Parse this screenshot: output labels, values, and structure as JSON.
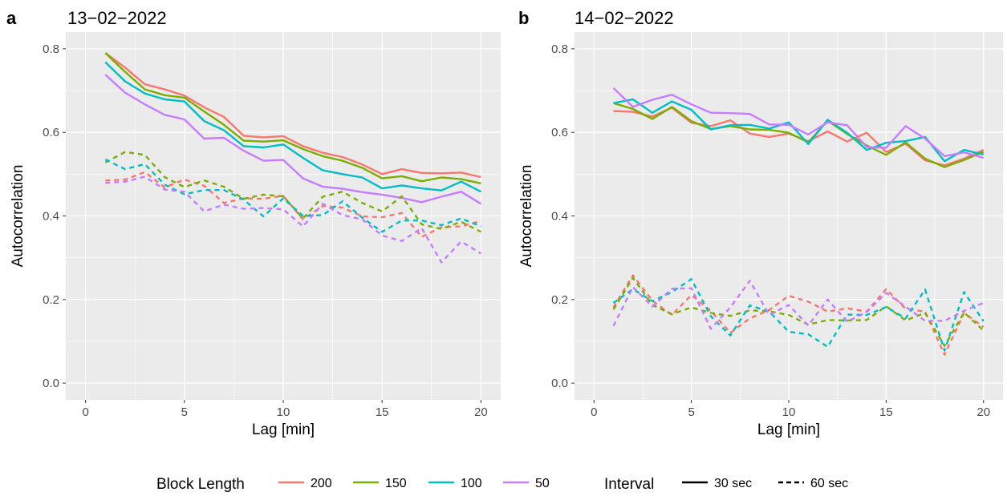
{
  "legend": {
    "block_length_title": "Block Length",
    "interval_title": "Interval",
    "block_lengths": [
      {
        "label": "200",
        "color": "#F8766D"
      },
      {
        "label": "150",
        "color": "#7CAE00"
      },
      {
        "label": "100",
        "color": "#00BFC4"
      },
      {
        "label": "50",
        "color": "#C77CFF"
      }
    ],
    "intervals": [
      {
        "label": "30 sec",
        "style": "solid"
      },
      {
        "label": "60 sec",
        "style": "dashed"
      }
    ]
  },
  "chart_data": [
    {
      "type": "line",
      "panel_letter": "a",
      "title": "13−02−2022",
      "xlabel": "Lag [min]",
      "ylabel": "Autocorrelation",
      "xlim": [
        -1,
        21
      ],
      "ylim": [
        -0.04,
        0.84
      ],
      "x_ticks": [
        0,
        5,
        10,
        15,
        20
      ],
      "y_ticks": [
        0.0,
        0.2,
        0.4,
        0.6,
        0.8
      ],
      "y_tick_labels": [
        "0.0",
        "0.2",
        "0.4",
        "0.6",
        "0.8"
      ],
      "grid": true,
      "x": [
        1,
        2,
        3,
        4,
        5,
        6,
        7,
        8,
        9,
        10,
        11,
        12,
        13,
        14,
        15,
        16,
        17,
        18,
        19,
        20
      ],
      "series": [
        {
          "name": "200",
          "interval": "30 sec",
          "values": [
            0.79,
            0.755,
            0.715,
            0.703,
            0.688,
            0.66,
            0.637,
            0.592,
            0.588,
            0.591,
            0.567,
            0.551,
            0.541,
            0.523,
            0.5,
            0.512,
            0.503,
            0.502,
            0.504,
            0.493
          ]
        },
        {
          "name": "150",
          "interval": "30 sec",
          "values": [
            0.79,
            0.745,
            0.703,
            0.689,
            0.683,
            0.65,
            0.618,
            0.58,
            0.578,
            0.581,
            0.56,
            0.543,
            0.532,
            0.515,
            0.49,
            0.495,
            0.483,
            0.492,
            0.488,
            0.478
          ]
        },
        {
          "name": "100",
          "interval": "30 sec",
          "values": [
            0.768,
            0.722,
            0.693,
            0.679,
            0.674,
            0.627,
            0.605,
            0.567,
            0.564,
            0.571,
            0.539,
            0.509,
            0.5,
            0.492,
            0.466,
            0.473,
            0.466,
            0.461,
            0.482,
            0.458
          ]
        },
        {
          "name": "50",
          "interval": "30 sec",
          "values": [
            0.738,
            0.695,
            0.667,
            0.642,
            0.631,
            0.585,
            0.587,
            0.556,
            0.532,
            0.534,
            0.49,
            0.47,
            0.465,
            0.457,
            0.451,
            0.443,
            0.433,
            0.446,
            0.458,
            0.429
          ]
        },
        {
          "name": "200",
          "interval": "60 sec",
          "values": [
            0.485,
            0.487,
            0.505,
            0.468,
            0.487,
            0.472,
            0.431,
            0.442,
            0.441,
            0.448,
            0.392,
            0.424,
            0.42,
            0.399,
            0.397,
            0.407,
            0.35,
            0.373,
            0.375,
            0.388
          ]
        },
        {
          "name": "150",
          "interval": "60 sec",
          "values": [
            0.528,
            0.553,
            0.546,
            0.493,
            0.469,
            0.485,
            0.47,
            0.441,
            0.451,
            0.447,
            0.394,
            0.446,
            0.458,
            0.431,
            0.411,
            0.447,
            0.38,
            0.369,
            0.386,
            0.362
          ]
        },
        {
          "name": "100",
          "interval": "60 sec",
          "values": [
            0.535,
            0.512,
            0.524,
            0.475,
            0.452,
            0.462,
            0.462,
            0.439,
            0.399,
            0.442,
            0.4,
            0.402,
            0.435,
            0.396,
            0.362,
            0.389,
            0.389,
            0.378,
            0.394,
            0.375
          ]
        },
        {
          "name": "50",
          "interval": "60 sec",
          "values": [
            0.479,
            0.482,
            0.494,
            0.463,
            0.458,
            0.411,
            0.427,
            0.417,
            0.419,
            0.416,
            0.375,
            0.429,
            0.402,
            0.392,
            0.353,
            0.34,
            0.371,
            0.289,
            0.339,
            0.31
          ]
        }
      ]
    },
    {
      "type": "line",
      "panel_letter": "b",
      "title": "14−02−2022",
      "xlabel": "Lag [min]",
      "ylabel": "Autocorrelation",
      "xlim": [
        -1,
        21
      ],
      "ylim": [
        -0.04,
        0.84
      ],
      "x_ticks": [
        0,
        5,
        10,
        15,
        20
      ],
      "y_ticks": [
        0.0,
        0.2,
        0.4,
        0.6,
        0.8
      ],
      "y_tick_labels": [
        "0.0",
        "0.2",
        "0.4",
        "0.6",
        "0.8"
      ],
      "grid": true,
      "x": [
        1,
        2,
        3,
        4,
        5,
        6,
        7,
        8,
        9,
        10,
        11,
        12,
        13,
        14,
        15,
        16,
        17,
        18,
        19,
        20
      ],
      "series": [
        {
          "name": "200",
          "interval": "30 sec",
          "values": [
            0.651,
            0.649,
            0.638,
            0.659,
            0.623,
            0.615,
            0.629,
            0.597,
            0.589,
            0.597,
            0.579,
            0.602,
            0.578,
            0.599,
            0.553,
            0.573,
            0.533,
            0.521,
            0.537,
            0.558
          ]
        },
        {
          "name": "150",
          "interval": "30 sec",
          "values": [
            0.67,
            0.656,
            0.632,
            0.661,
            0.627,
            0.608,
            0.615,
            0.607,
            0.606,
            0.599,
            0.576,
            0.628,
            0.596,
            0.569,
            0.546,
            0.576,
            0.537,
            0.517,
            0.534,
            0.553
          ]
        },
        {
          "name": "100",
          "interval": "30 sec",
          "values": [
            0.67,
            0.679,
            0.647,
            0.674,
            0.654,
            0.607,
            0.617,
            0.618,
            0.609,
            0.624,
            0.572,
            0.63,
            0.599,
            0.558,
            0.575,
            0.579,
            0.589,
            0.531,
            0.558,
            0.547
          ]
        },
        {
          "name": "50",
          "interval": "30 sec",
          "values": [
            0.706,
            0.661,
            0.678,
            0.69,
            0.667,
            0.647,
            0.646,
            0.644,
            0.619,
            0.618,
            0.595,
            0.624,
            0.617,
            0.565,
            0.563,
            0.615,
            0.585,
            0.543,
            0.552,
            0.539
          ]
        },
        {
          "name": "200",
          "interval": "60 sec",
          "values": [
            0.181,
            0.258,
            0.197,
            0.163,
            0.211,
            0.173,
            0.12,
            0.155,
            0.175,
            0.209,
            0.195,
            0.171,
            0.179,
            0.171,
            0.225,
            0.178,
            0.171,
            0.068,
            0.168,
            0.134
          ]
        },
        {
          "name": "150",
          "interval": "60 sec",
          "values": [
            0.176,
            0.252,
            0.187,
            0.165,
            0.181,
            0.168,
            0.161,
            0.174,
            0.172,
            0.163,
            0.14,
            0.151,
            0.15,
            0.151,
            0.184,
            0.15,
            0.168,
            0.089,
            0.169,
            0.126
          ]
        },
        {
          "name": "100",
          "interval": "60 sec",
          "values": [
            0.192,
            0.225,
            0.196,
            0.218,
            0.249,
            0.16,
            0.114,
            0.186,
            0.171,
            0.123,
            0.117,
            0.087,
            0.164,
            0.163,
            0.182,
            0.155,
            0.224,
            0.078,
            0.218,
            0.148
          ]
        },
        {
          "name": "50",
          "interval": "60 sec",
          "values": [
            0.137,
            0.23,
            0.183,
            0.226,
            0.227,
            0.13,
            0.181,
            0.245,
            0.163,
            0.187,
            0.138,
            0.2,
            0.147,
            0.17,
            0.216,
            0.183,
            0.149,
            0.149,
            0.173,
            0.192
          ]
        }
      ]
    }
  ]
}
